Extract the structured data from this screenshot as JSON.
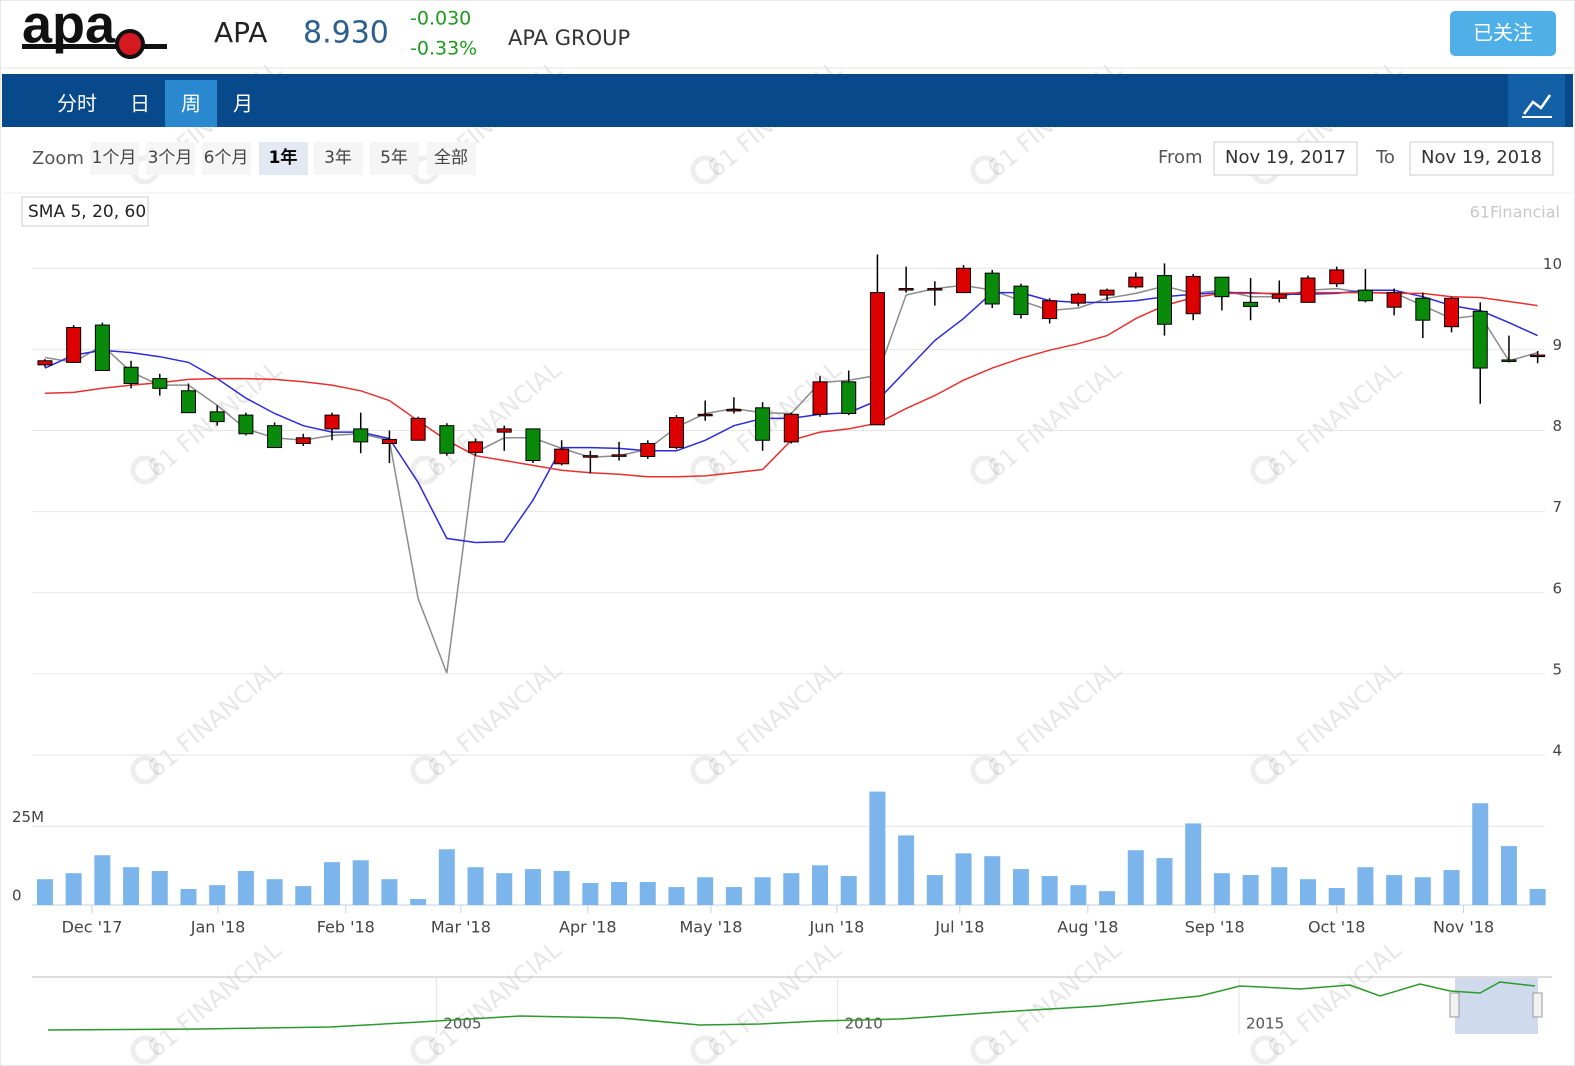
{
  "header": {
    "logo": "apa",
    "symbol": "APA",
    "price": "8.930",
    "change": "-0.030",
    "change_percent": "-0.33%",
    "name": "APA GROUP",
    "follow_button": "已关注"
  },
  "tabs": [
    "分时",
    "日",
    "周",
    "月"
  ],
  "active_tab": 2,
  "zoom": {
    "label": "Zoom",
    "buttons": [
      "1个月",
      "3个月",
      "6个月",
      "1年",
      "3年",
      "5年",
      "全部"
    ],
    "active": 3
  },
  "range": {
    "from_label": "From",
    "from": "Nov 19, 2017",
    "to_label": "To",
    "to": "Nov 19, 2018"
  },
  "credit": "61Financial",
  "watermark": "61 FINANCIAL",
  "chart_data": {
    "type": "candlestick",
    "indicator_label": "SMA 5, 20, 60",
    "up_color": "#dd0000",
    "down_color": "#0a8a0a",
    "open": [
      8.81,
      8.84,
      9.3,
      8.78,
      8.64,
      8.49,
      8.23,
      8.19,
      8.06,
      7.84,
      8.02,
      8.02,
      7.84,
      7.88,
      8.06,
      7.73,
      7.98,
      8.02,
      7.59,
      7.68,
      7.7,
      7.68,
      7.79,
      8.19,
      8.25,
      8.28,
      7.86,
      8.2,
      8.6,
      8.07,
      9.74,
      9.75,
      9.7,
      9.94,
      9.78,
      9.38,
      9.57,
      9.67,
      9.77,
      9.91,
      9.44,
      9.89,
      9.58,
      9.63,
      9.58,
      9.81,
      9.73,
      9.52,
      9.63,
      9.28,
      9.47,
      8.87,
      8.92
    ],
    "high": [
      8.88,
      9.3,
      9.33,
      8.86,
      8.7,
      8.58,
      8.31,
      8.22,
      8.1,
      7.96,
      8.22,
      8.22,
      8.0,
      8.17,
      8.09,
      7.9,
      8.06,
      8.02,
      7.88,
      7.75,
      7.86,
      7.88,
      8.19,
      8.37,
      8.41,
      8.35,
      8.22,
      8.67,
      8.74,
      10.17,
      10.02,
      9.84,
      10.04,
      9.98,
      9.81,
      9.63,
      9.7,
      9.75,
      9.95,
      10.06,
      9.93,
      9.89,
      9.88,
      9.85,
      9.91,
      10.02,
      9.99,
      9.75,
      9.7,
      9.65,
      9.58,
      9.17,
      8.98
    ],
    "low": [
      8.78,
      8.84,
      8.74,
      8.52,
      8.43,
      8.22,
      8.06,
      7.94,
      7.79,
      7.81,
      7.88,
      7.72,
      7.6,
      7.88,
      7.69,
      7.69,
      7.75,
      7.6,
      7.57,
      7.47,
      7.63,
      7.65,
      7.77,
      8.12,
      8.21,
      7.75,
      7.84,
      8.17,
      8.19,
      8.07,
      9.7,
      9.54,
      9.7,
      9.51,
      9.38,
      9.32,
      9.53,
      9.6,
      9.75,
      9.17,
      9.36,
      9.48,
      9.36,
      9.58,
      9.58,
      9.77,
      9.58,
      9.42,
      9.14,
      9.21,
      8.33,
      8.84,
      8.83
    ],
    "close": [
      8.86,
      9.27,
      8.74,
      8.58,
      8.52,
      8.22,
      8.11,
      7.96,
      7.79,
      7.91,
      8.19,
      7.86,
      7.89,
      8.15,
      7.72,
      7.86,
      8.02,
      7.63,
      7.77,
      7.69,
      7.7,
      7.84,
      8.16,
      8.2,
      8.26,
      7.88,
      8.2,
      8.6,
      8.21,
      9.7,
      9.75,
      9.75,
      10.0,
      9.56,
      9.43,
      9.6,
      9.68,
      9.73,
      9.89,
      9.31,
      9.9,
      9.65,
      9.53,
      9.68,
      9.88,
      9.98,
      9.6,
      9.7,
      9.36,
      9.63,
      8.77,
      8.86,
      8.93
    ],
    "sma": [
      {
        "color": "#8c8c8c",
        "values": [
          8.9,
          8.84,
          9.05,
          8.72,
          8.56,
          8.56,
          8.31,
          8.02,
          7.91,
          7.88,
          7.94,
          7.96,
          7.88,
          5.93,
          5.01,
          7.73,
          7.91,
          7.91,
          7.78,
          7.67,
          7.69,
          7.77,
          8.04,
          8.21,
          8.27,
          8.22,
          8.21,
          8.59,
          8.62,
          8.68,
          9.67,
          9.75,
          9.79,
          9.73,
          9.6,
          9.48,
          9.51,
          9.63,
          9.69,
          9.78,
          9.69,
          9.73,
          9.65,
          9.65,
          9.73,
          9.75,
          9.7,
          9.7,
          9.54,
          9.38,
          9.42,
          8.86,
          8.96
        ]
      },
      {
        "color": "#2b2bdd",
        "values": [
          8.77,
          8.93,
          8.99,
          8.96,
          8.91,
          8.84,
          8.64,
          8.4,
          8.21,
          8.06,
          7.98,
          7.98,
          7.9,
          7.36,
          6.67,
          6.62,
          6.63,
          7.14,
          7.79,
          7.79,
          7.78,
          7.75,
          7.75,
          7.88,
          8.06,
          8.15,
          8.15,
          8.2,
          8.22,
          8.37,
          8.74,
          9.11,
          9.38,
          9.7,
          9.7,
          9.6,
          9.58,
          9.58,
          9.6,
          9.65,
          9.68,
          9.7,
          9.7,
          9.68,
          9.68,
          9.69,
          9.73,
          9.73,
          9.65,
          9.54,
          9.48,
          9.33,
          9.17
        ]
      },
      {
        "color": "#e83030",
        "values": [
          8.46,
          8.47,
          8.52,
          8.56,
          8.59,
          8.63,
          8.64,
          8.64,
          8.63,
          8.6,
          8.56,
          8.49,
          8.37,
          8.12,
          7.88,
          7.69,
          7.63,
          7.57,
          7.51,
          7.48,
          7.46,
          7.43,
          7.43,
          7.44,
          7.48,
          7.52,
          7.88,
          7.98,
          8.02,
          8.09,
          8.27,
          8.43,
          8.62,
          8.77,
          8.89,
          8.99,
          9.07,
          9.17,
          9.38,
          9.54,
          9.64,
          9.69,
          9.69,
          9.69,
          9.7,
          9.7,
          9.7,
          9.69,
          9.69,
          9.65,
          9.64,
          9.59,
          9.54
        ]
      }
    ],
    "ylim": [
      4,
      10.25
    ],
    "yticks": [
      4,
      5,
      6,
      7,
      8,
      9,
      10
    ],
    "xlim": [
      -0.5,
      52.5
    ],
    "xticks": [
      {
        "value": 1.64,
        "label": "Dec '17"
      },
      {
        "value": 6.03,
        "label": "Jan '18"
      },
      {
        "value": 10.48,
        "label": "Feb '18"
      },
      {
        "value": 14.49,
        "label": "Mar '18"
      },
      {
        "value": 18.91,
        "label": "Apr '18"
      },
      {
        "value": 23.2,
        "label": "May '18"
      },
      {
        "value": 27.59,
        "label": "Jun '18"
      },
      {
        "value": 31.87,
        "label": "Jul '18"
      },
      {
        "value": 36.33,
        "label": "Aug '18"
      },
      {
        "value": 40.75,
        "label": "Sep '18"
      },
      {
        "value": 45.0,
        "label": "Oct '18"
      },
      {
        "value": 49.42,
        "label": "Nov '18"
      }
    ],
    "volume": {
      "color": "#7cb5ec",
      "ylim": [
        0,
        40000000
      ],
      "yticks": [
        0,
        {
          "value": 25000000,
          "label": "25M"
        }
      ],
      "values": [
        8200000,
        10100000,
        15800000,
        12000000,
        10800000,
        5100000,
        6300000,
        10800000,
        8200000,
        6000000,
        13600000,
        14200000,
        8200000,
        1900000,
        17700000,
        12000000,
        10100000,
        11400000,
        10800000,
        7000000,
        7300000,
        7300000,
        5700000,
        8800000,
        5700000,
        8800000,
        10100000,
        12600000,
        9200000,
        36000000,
        22100000,
        9500000,
        16400000,
        15500000,
        11400000,
        9200000,
        6300000,
        4400000,
        17400000,
        14900000,
        25900000,
        10100000,
        9500000,
        12000000,
        8200000,
        5400000,
        12000000,
        9500000,
        8800000,
        11100000,
        32300000,
        18700000,
        5100000
      ]
    },
    "navigator": {
      "xlim": [
        2000,
        2018.9
      ],
      "xticks": [
        2005,
        2010,
        2015
      ],
      "color": "#2a9a2a"
    }
  }
}
